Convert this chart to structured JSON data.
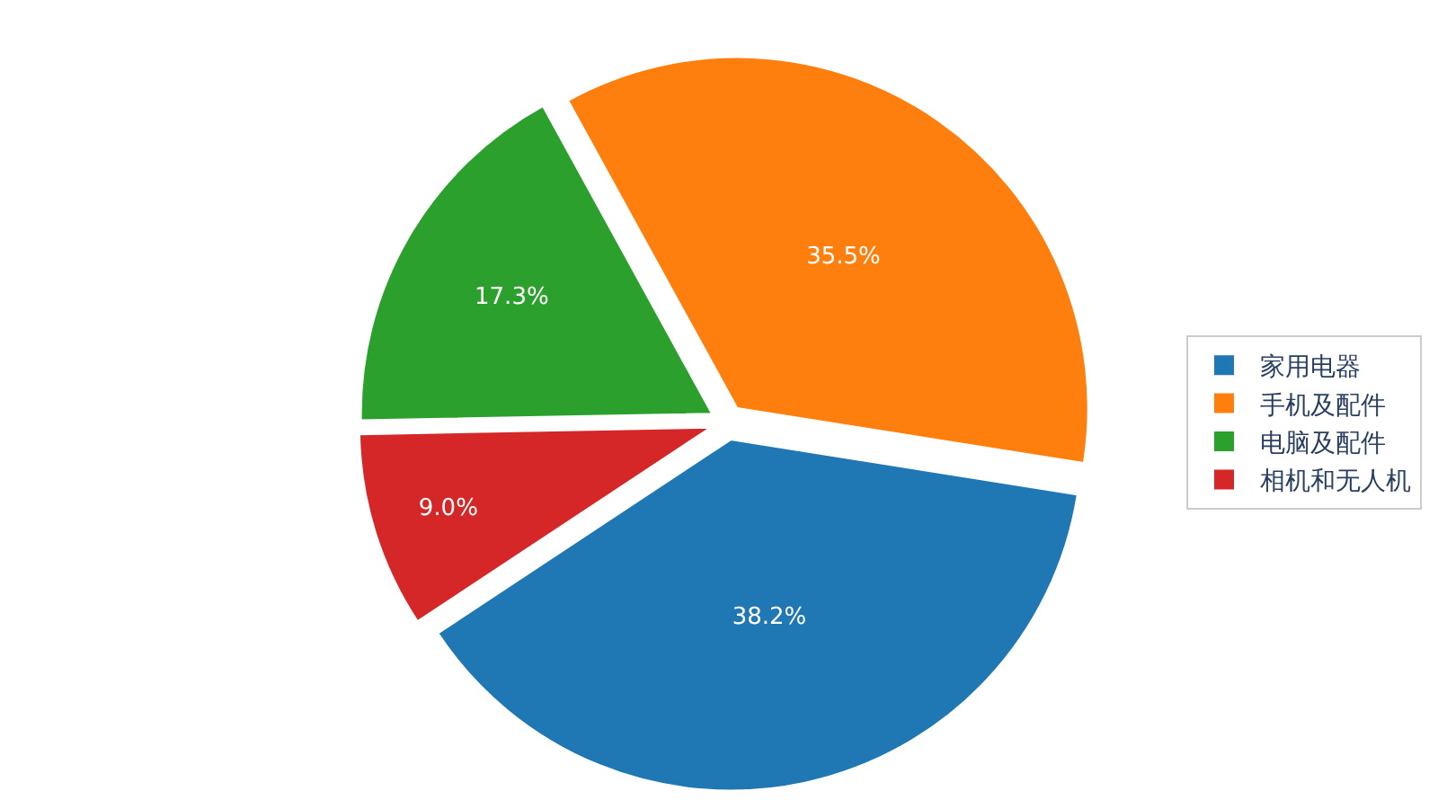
{
  "chart_data": {
    "type": "pie",
    "categories": [
      "家用电器",
      "手机及配件",
      "电脑及配件",
      "相机和无人机"
    ],
    "values": [
      38.2,
      35.5,
      17.3,
      9.0
    ],
    "colors": [
      "#1f77b4",
      "#ff7f0e",
      "#2ca02c",
      "#d62728"
    ],
    "value_labels": [
      "38.2%",
      "35.5%",
      "17.3%",
      "9.0%"
    ],
    "legend": "right"
  }
}
